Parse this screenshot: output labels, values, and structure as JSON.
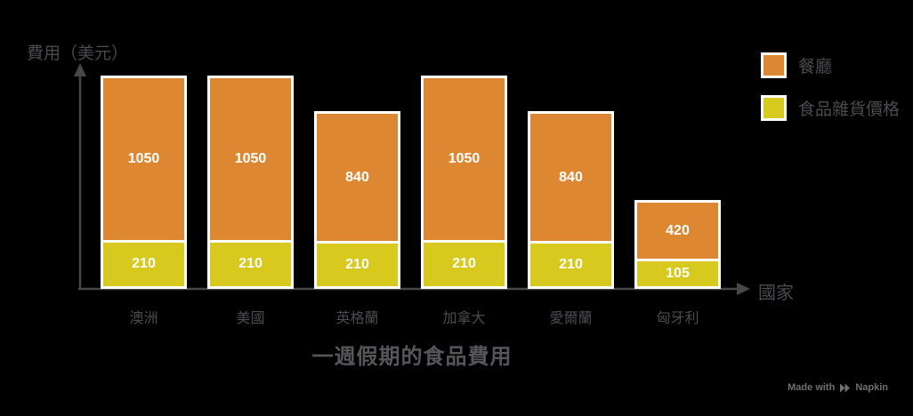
{
  "chart_data": {
    "type": "bar",
    "stacked": true,
    "title": "一週假期的食品費用",
    "xlabel": "國家",
    "ylabel": "費用（美元）",
    "categories": [
      "澳洲",
      "美國",
      "英格蘭",
      "加拿大",
      "愛爾蘭",
      "匈牙利"
    ],
    "series": [
      {
        "name": "餐廳",
        "color": "#DD8733",
        "values": [
          1050,
          1050,
          840,
          1050,
          840,
          420
        ]
      },
      {
        "name": "食品雜貨價格",
        "color": "#D7C91E",
        "values": [
          210,
          210,
          210,
          210,
          210,
          105
        ]
      }
    ],
    "ylim": [
      0,
      1260
    ],
    "legend_position": "top-right",
    "grid": false,
    "value_labels": true
  },
  "watermark": {
    "prefix": "Made with",
    "brand": "Napkin"
  },
  "colors": {
    "background": "#000000",
    "axis": "#46474A",
    "tick_text": "#4A4B4E",
    "title_text": "#55565A",
    "value_text": "#FFFFFF",
    "bar_border": "#FFFFFF",
    "watermark_text": "#707070"
  }
}
